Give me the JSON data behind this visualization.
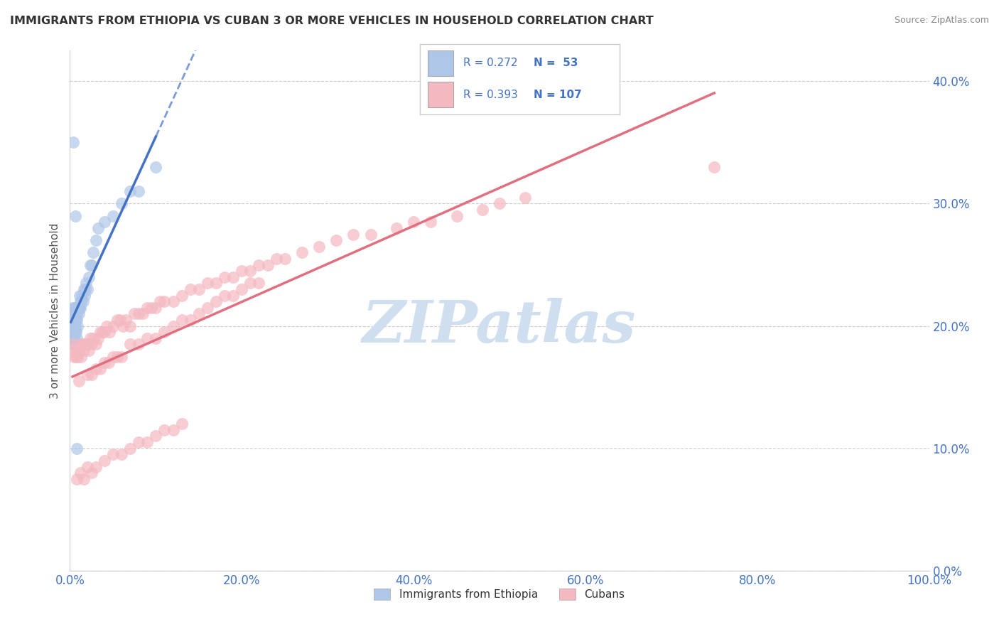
{
  "title": "IMMIGRANTS FROM ETHIOPIA VS CUBAN 3 OR MORE VEHICLES IN HOUSEHOLD CORRELATION CHART",
  "source": "Source: ZipAtlas.com",
  "ylabel": "3 or more Vehicles in Household",
  "xlim": [
    0.0,
    1.0
  ],
  "ylim": [
    0.0,
    0.425
  ],
  "xticks": [
    0.0,
    0.2,
    0.4,
    0.6,
    0.8,
    1.0
  ],
  "yticks": [
    0.0,
    0.1,
    0.2,
    0.3,
    0.4
  ],
  "xticklabels": [
    "0.0%",
    "20.0%",
    "40.0%",
    "60.0%",
    "80.0%",
    "100.0%"
  ],
  "yticklabels": [
    "0.0%",
    "10.0%",
    "20.0%",
    "30.0%",
    "40.0%"
  ],
  "legend1_label": "Immigrants from Ethiopia",
  "legend2_label": "Cubans",
  "R1": 0.272,
  "N1": 53,
  "R2": 0.393,
  "N2": 107,
  "color1": "#aec6e8",
  "color2": "#f4b8c1",
  "line1_color": "#4472c4",
  "line2_color": "#e07080",
  "watermark": "ZIPatlas",
  "watermark_color": "#d0dff0",
  "ethiopia_x": [
    0.001,
    0.002,
    0.002,
    0.003,
    0.003,
    0.003,
    0.004,
    0.004,
    0.004,
    0.005,
    0.005,
    0.005,
    0.005,
    0.006,
    0.006,
    0.006,
    0.007,
    0.007,
    0.007,
    0.008,
    0.008,
    0.008,
    0.009,
    0.009,
    0.01,
    0.01,
    0.011,
    0.011,
    0.012,
    0.012,
    0.013,
    0.014,
    0.015,
    0.016,
    0.017,
    0.018,
    0.019,
    0.02,
    0.022,
    0.024,
    0.025,
    0.027,
    0.03,
    0.033,
    0.04,
    0.05,
    0.06,
    0.07,
    0.08,
    0.1,
    0.004,
    0.006,
    0.008
  ],
  "ethiopia_y": [
    0.195,
    0.2,
    0.185,
    0.195,
    0.21,
    0.19,
    0.195,
    0.215,
    0.205,
    0.21,
    0.195,
    0.19,
    0.215,
    0.2,
    0.195,
    0.21,
    0.205,
    0.195,
    0.215,
    0.21,
    0.205,
    0.19,
    0.215,
    0.2,
    0.215,
    0.21,
    0.215,
    0.225,
    0.22,
    0.215,
    0.22,
    0.225,
    0.22,
    0.23,
    0.225,
    0.23,
    0.235,
    0.23,
    0.24,
    0.25,
    0.25,
    0.26,
    0.27,
    0.28,
    0.285,
    0.29,
    0.3,
    0.31,
    0.31,
    0.33,
    0.35,
    0.29,
    0.1
  ],
  "cuba_x": [
    0.003,
    0.005,
    0.006,
    0.007,
    0.008,
    0.009,
    0.01,
    0.012,
    0.013,
    0.015,
    0.016,
    0.018,
    0.02,
    0.022,
    0.024,
    0.025,
    0.027,
    0.03,
    0.033,
    0.035,
    0.038,
    0.04,
    0.043,
    0.046,
    0.05,
    0.055,
    0.058,
    0.062,
    0.065,
    0.07,
    0.075,
    0.08,
    0.085,
    0.09,
    0.095,
    0.1,
    0.105,
    0.11,
    0.12,
    0.13,
    0.14,
    0.15,
    0.16,
    0.17,
    0.18,
    0.19,
    0.2,
    0.21,
    0.22,
    0.23,
    0.24,
    0.25,
    0.27,
    0.29,
    0.31,
    0.33,
    0.35,
    0.38,
    0.4,
    0.42,
    0.45,
    0.48,
    0.5,
    0.53,
    0.01,
    0.02,
    0.03,
    0.04,
    0.05,
    0.06,
    0.025,
    0.035,
    0.045,
    0.055,
    0.07,
    0.08,
    0.09,
    0.1,
    0.11,
    0.12,
    0.13,
    0.14,
    0.15,
    0.16,
    0.17,
    0.18,
    0.19,
    0.2,
    0.21,
    0.22,
    0.008,
    0.012,
    0.016,
    0.02,
    0.025,
    0.03,
    0.04,
    0.05,
    0.06,
    0.07,
    0.08,
    0.09,
    0.1,
    0.11,
    0.12,
    0.13,
    0.75
  ],
  "cuba_y": [
    0.185,
    0.175,
    0.18,
    0.175,
    0.18,
    0.175,
    0.18,
    0.185,
    0.175,
    0.185,
    0.18,
    0.185,
    0.185,
    0.18,
    0.19,
    0.185,
    0.19,
    0.185,
    0.19,
    0.195,
    0.195,
    0.195,
    0.2,
    0.195,
    0.2,
    0.205,
    0.205,
    0.2,
    0.205,
    0.2,
    0.21,
    0.21,
    0.21,
    0.215,
    0.215,
    0.215,
    0.22,
    0.22,
    0.22,
    0.225,
    0.23,
    0.23,
    0.235,
    0.235,
    0.24,
    0.24,
    0.245,
    0.245,
    0.25,
    0.25,
    0.255,
    0.255,
    0.26,
    0.265,
    0.27,
    0.275,
    0.275,
    0.28,
    0.285,
    0.285,
    0.29,
    0.295,
    0.3,
    0.305,
    0.155,
    0.16,
    0.165,
    0.17,
    0.175,
    0.175,
    0.16,
    0.165,
    0.17,
    0.175,
    0.185,
    0.185,
    0.19,
    0.19,
    0.195,
    0.2,
    0.205,
    0.205,
    0.21,
    0.215,
    0.22,
    0.225,
    0.225,
    0.23,
    0.235,
    0.235,
    0.075,
    0.08,
    0.075,
    0.085,
    0.08,
    0.085,
    0.09,
    0.095,
    0.095,
    0.1,
    0.105,
    0.105,
    0.11,
    0.115,
    0.115,
    0.12,
    0.33
  ]
}
